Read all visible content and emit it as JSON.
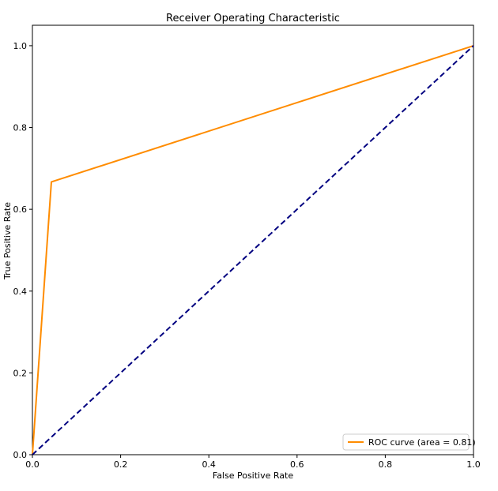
{
  "chart_data": {
    "type": "line",
    "title": "Receiver Operating Characteristic",
    "xlabel": "False Positive Rate",
    "ylabel": "True Positive Rate",
    "xlim": [
      0.0,
      1.0
    ],
    "ylim": [
      0.0,
      1.05
    ],
    "x_ticks": [
      "0.0",
      "0.2",
      "0.4",
      "0.6",
      "0.8",
      "1.0"
    ],
    "y_ticks": [
      "0.0",
      "0.2",
      "0.4",
      "0.6",
      "0.8",
      "1.0"
    ],
    "grid": false,
    "legend_position": "lower-right",
    "series": [
      {
        "name": "ROC curve (area = 0.81)",
        "color": "#ff8c00",
        "style": "solid",
        "x": [
          0.0,
          0.043,
          1.0
        ],
        "y": [
          0.0,
          0.667,
          1.0
        ]
      },
      {
        "color": "#000080",
        "style": "dashed",
        "x": [
          0.0,
          1.0
        ],
        "y": [
          0.0,
          1.0
        ]
      }
    ]
  }
}
